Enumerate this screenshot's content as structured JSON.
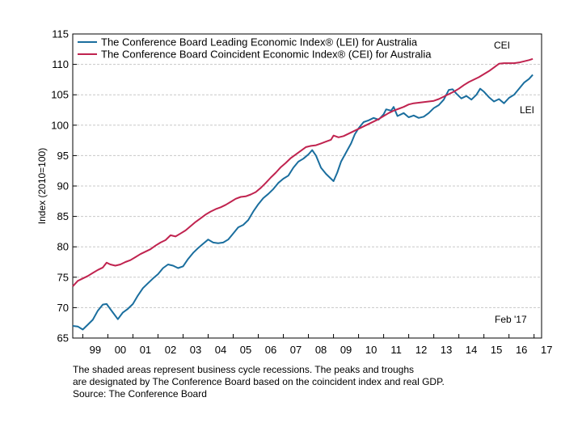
{
  "chart_data": {
    "type": "line",
    "ylabel": "Index (2010=100)",
    "ylim": [
      65,
      115
    ],
    "yticks": [
      65,
      70,
      75,
      80,
      85,
      90,
      95,
      100,
      105,
      110,
      115
    ],
    "xlim": [
      1998.6,
      2017.3
    ],
    "xticks": [
      {
        "x": 1999,
        "label": "99"
      },
      {
        "x": 2000,
        "label": "00"
      },
      {
        "x": 2001,
        "label": "01"
      },
      {
        "x": 2002,
        "label": "02"
      },
      {
        "x": 2003,
        "label": "03"
      },
      {
        "x": 2004,
        "label": "04"
      },
      {
        "x": 2005,
        "label": "05"
      },
      {
        "x": 2006,
        "label": "06"
      },
      {
        "x": 2007,
        "label": "07"
      },
      {
        "x": 2008,
        "label": "08"
      },
      {
        "x": 2009,
        "label": "09"
      },
      {
        "x": 2010,
        "label": "10"
      },
      {
        "x": 2011,
        "label": "11"
      },
      {
        "x": 2012,
        "label": "12"
      },
      {
        "x": 2013,
        "label": "13"
      },
      {
        "x": 2014,
        "label": "14"
      },
      {
        "x": 2015,
        "label": "15"
      },
      {
        "x": 2016,
        "label": "16"
      },
      {
        "x": 2017,
        "label": "17"
      }
    ],
    "grid": true,
    "legend_position": "top-left",
    "annotations": {
      "cei": "CEI",
      "lei": "LEI",
      "date": "Feb '17"
    },
    "series": [
      {
        "name": "The Conference Board Leading Economic Index® (LEI) for Australia",
        "color": "#1a6e9e",
        "points": [
          [
            1998.6,
            67.0
          ],
          [
            1998.8,
            66.9
          ],
          [
            1999.0,
            66.4
          ],
          [
            1999.2,
            67.2
          ],
          [
            1999.4,
            68.0
          ],
          [
            1999.6,
            69.5
          ],
          [
            1999.8,
            70.5
          ],
          [
            1999.95,
            70.6
          ],
          [
            2000.2,
            69.2
          ],
          [
            2000.4,
            68.1
          ],
          [
            2000.6,
            69.2
          ],
          [
            2000.8,
            69.8
          ],
          [
            2001.0,
            70.6
          ],
          [
            2001.2,
            72.0
          ],
          [
            2001.4,
            73.2
          ],
          [
            2001.6,
            74.0
          ],
          [
            2001.8,
            74.8
          ],
          [
            2002.0,
            75.5
          ],
          [
            2002.2,
            76.5
          ],
          [
            2002.4,
            77.1
          ],
          [
            2002.6,
            76.9
          ],
          [
            2002.8,
            76.5
          ],
          [
            2003.0,
            76.8
          ],
          [
            2003.2,
            78.0
          ],
          [
            2003.4,
            79.0
          ],
          [
            2003.6,
            79.8
          ],
          [
            2003.8,
            80.5
          ],
          [
            2004.0,
            81.2
          ],
          [
            2004.2,
            80.7
          ],
          [
            2004.4,
            80.6
          ],
          [
            2004.6,
            80.7
          ],
          [
            2004.8,
            81.2
          ],
          [
            2005.0,
            82.2
          ],
          [
            2005.2,
            83.2
          ],
          [
            2005.4,
            83.6
          ],
          [
            2005.6,
            84.4
          ],
          [
            2005.8,
            85.8
          ],
          [
            2006.0,
            87.0
          ],
          [
            2006.2,
            88.0
          ],
          [
            2006.4,
            88.7
          ],
          [
            2006.6,
            89.5
          ],
          [
            2006.8,
            90.5
          ],
          [
            2007.0,
            91.2
          ],
          [
            2007.2,
            91.7
          ],
          [
            2007.4,
            93.0
          ],
          [
            2007.6,
            94.0
          ],
          [
            2007.8,
            94.5
          ],
          [
            2008.0,
            95.2
          ],
          [
            2008.15,
            95.9
          ],
          [
            2008.3,
            95.0
          ],
          [
            2008.5,
            93.0
          ],
          [
            2008.7,
            92.0
          ],
          [
            2008.9,
            91.2
          ],
          [
            2009.0,
            90.8
          ],
          [
            2009.15,
            92.2
          ],
          [
            2009.3,
            94.0
          ],
          [
            2009.5,
            95.5
          ],
          [
            2009.7,
            97.0
          ],
          [
            2009.85,
            98.5
          ],
          [
            2010.0,
            99.5
          ],
          [
            2010.2,
            100.5
          ],
          [
            2010.4,
            100.8
          ],
          [
            2010.6,
            101.2
          ],
          [
            2010.8,
            100.9
          ],
          [
            2011.0,
            101.8
          ],
          [
            2011.1,
            102.6
          ],
          [
            2011.3,
            102.4
          ],
          [
            2011.4,
            103.0
          ],
          [
            2011.55,
            101.5
          ],
          [
            2011.8,
            102.0
          ],
          [
            2012.0,
            101.3
          ],
          [
            2012.2,
            101.6
          ],
          [
            2012.4,
            101.2
          ],
          [
            2012.6,
            101.4
          ],
          [
            2012.8,
            102.0
          ],
          [
            2013.0,
            102.8
          ],
          [
            2013.2,
            103.3
          ],
          [
            2013.4,
            104.2
          ],
          [
            2013.6,
            105.8
          ],
          [
            2013.75,
            105.9
          ],
          [
            2013.9,
            105.2
          ],
          [
            2014.1,
            104.4
          ],
          [
            2014.3,
            104.8
          ],
          [
            2014.5,
            104.2
          ],
          [
            2014.7,
            105.0
          ],
          [
            2014.85,
            106.0
          ],
          [
            2015.0,
            105.5
          ],
          [
            2015.2,
            104.6
          ],
          [
            2015.4,
            103.9
          ],
          [
            2015.6,
            104.3
          ],
          [
            2015.8,
            103.6
          ],
          [
            2016.0,
            104.5
          ],
          [
            2016.2,
            105.0
          ],
          [
            2016.4,
            106.0
          ],
          [
            2016.6,
            107.0
          ],
          [
            2016.8,
            107.6
          ],
          [
            2016.95,
            108.3
          ]
        ]
      },
      {
        "name": "The Conference Board Coincident Economic Index® (CEI) for Australia",
        "color": "#c0234f",
        "points": [
          [
            1998.6,
            73.5
          ],
          [
            1998.8,
            74.4
          ],
          [
            1999.0,
            74.8
          ],
          [
            1999.2,
            75.2
          ],
          [
            1999.4,
            75.7
          ],
          [
            1999.6,
            76.2
          ],
          [
            1999.8,
            76.6
          ],
          [
            1999.95,
            77.4
          ],
          [
            2000.1,
            77.1
          ],
          [
            2000.3,
            76.9
          ],
          [
            2000.5,
            77.1
          ],
          [
            2000.7,
            77.5
          ],
          [
            2000.9,
            77.8
          ],
          [
            2001.1,
            78.3
          ],
          [
            2001.3,
            78.8
          ],
          [
            2001.5,
            79.2
          ],
          [
            2001.7,
            79.6
          ],
          [
            2001.9,
            80.2
          ],
          [
            2002.1,
            80.7
          ],
          [
            2002.3,
            81.1
          ],
          [
            2002.5,
            81.9
          ],
          [
            2002.7,
            81.7
          ],
          [
            2002.9,
            82.2
          ],
          [
            2003.1,
            82.7
          ],
          [
            2003.3,
            83.4
          ],
          [
            2003.5,
            84.1
          ],
          [
            2003.7,
            84.7
          ],
          [
            2003.9,
            85.3
          ],
          [
            2004.1,
            85.8
          ],
          [
            2004.3,
            86.2
          ],
          [
            2004.5,
            86.5
          ],
          [
            2004.7,
            86.9
          ],
          [
            2004.9,
            87.4
          ],
          [
            2005.1,
            87.9
          ],
          [
            2005.3,
            88.2
          ],
          [
            2005.5,
            88.3
          ],
          [
            2005.7,
            88.6
          ],
          [
            2005.9,
            89.0
          ],
          [
            2006.1,
            89.7
          ],
          [
            2006.3,
            90.5
          ],
          [
            2006.5,
            91.4
          ],
          [
            2006.7,
            92.2
          ],
          [
            2006.9,
            93.1
          ],
          [
            2007.1,
            93.8
          ],
          [
            2007.3,
            94.6
          ],
          [
            2007.5,
            95.2
          ],
          [
            2007.7,
            95.8
          ],
          [
            2007.9,
            96.4
          ],
          [
            2008.1,
            96.6
          ],
          [
            2008.3,
            96.7
          ],
          [
            2008.5,
            97.0
          ],
          [
            2008.7,
            97.3
          ],
          [
            2008.9,
            97.6
          ],
          [
            2009.0,
            98.3
          ],
          [
            2009.2,
            98.0
          ],
          [
            2009.4,
            98.2
          ],
          [
            2009.6,
            98.6
          ],
          [
            2009.8,
            99.0
          ],
          [
            2010.0,
            99.4
          ],
          [
            2010.2,
            99.8
          ],
          [
            2010.4,
            100.2
          ],
          [
            2010.6,
            100.6
          ],
          [
            2010.8,
            101.0
          ],
          [
            2011.0,
            101.5
          ],
          [
            2011.2,
            102.0
          ],
          [
            2011.4,
            102.4
          ],
          [
            2011.6,
            102.7
          ],
          [
            2011.8,
            103.0
          ],
          [
            2012.0,
            103.4
          ],
          [
            2012.2,
            103.6
          ],
          [
            2012.4,
            103.7
          ],
          [
            2012.6,
            103.8
          ],
          [
            2012.8,
            103.9
          ],
          [
            2013.0,
            104.0
          ],
          [
            2013.2,
            104.3
          ],
          [
            2013.4,
            104.7
          ],
          [
            2013.6,
            105.1
          ],
          [
            2013.8,
            105.5
          ],
          [
            2014.0,
            106.0
          ],
          [
            2014.2,
            106.6
          ],
          [
            2014.4,
            107.1
          ],
          [
            2014.6,
            107.5
          ],
          [
            2014.8,
            107.9
          ],
          [
            2015.0,
            108.4
          ],
          [
            2015.2,
            108.9
          ],
          [
            2015.4,
            109.5
          ],
          [
            2015.6,
            110.1
          ],
          [
            2015.8,
            110.2
          ],
          [
            2016.0,
            110.2
          ],
          [
            2016.2,
            110.2
          ],
          [
            2016.4,
            110.3
          ],
          [
            2016.6,
            110.5
          ],
          [
            2016.8,
            110.7
          ],
          [
            2016.95,
            110.9
          ]
        ]
      }
    ]
  },
  "footnote": {
    "line1": "The shaded areas represent business cycle recessions. The peaks and troughs",
    "line2": "are designated by The Conference Board based on the coincident index and real GDP.",
    "line3": "Source: The Conference Board"
  }
}
